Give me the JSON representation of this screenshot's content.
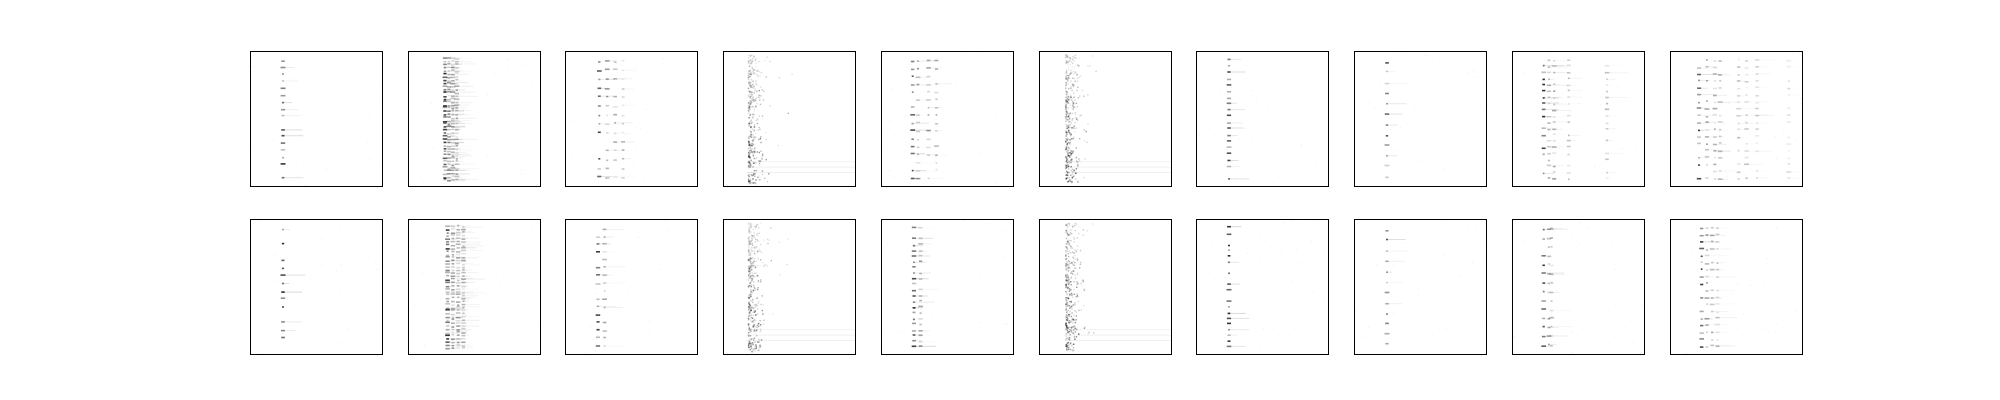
{
  "figure": {
    "background": "#ffffff",
    "frame_color": "#000000",
    "mark_color": "#000000"
  },
  "chart_data": {
    "type": "heatmap",
    "layout": {
      "rows": 2,
      "cols": 10
    },
    "title": "",
    "xlabel": "",
    "ylabel": "",
    "axes_ticks": "none",
    "grid": false,
    "colormap": "gray_r",
    "value_range": [
      0,
      1
    ],
    "panels": [
      {
        "row": 0,
        "col": 0,
        "style": "single",
        "columns": [
          0.25
        ],
        "bands": 18,
        "intensity": 0.8
      },
      {
        "row": 0,
        "col": 1,
        "style": "cluster",
        "columns": [
          0.28,
          0.31,
          0.34,
          0.37
        ],
        "bands": 40,
        "intensity": 0.9
      },
      {
        "row": 0,
        "col": 2,
        "style": "ladder",
        "columns": [
          0.26,
          0.32,
          0.38,
          0.44
        ],
        "bands": 14,
        "intensity": 0.8
      },
      {
        "row": 0,
        "col": 3,
        "style": "smear",
        "columns": [
          0.21
        ],
        "bands": 60,
        "intensity": 0.7
      },
      {
        "row": 0,
        "col": 4,
        "style": "ladder",
        "columns": [
          0.24,
          0.28,
          0.36,
          0.42
        ],
        "bands": 16,
        "intensity": 0.85
      },
      {
        "row": 0,
        "col": 5,
        "style": "smear",
        "columns": [
          0.22
        ],
        "bands": 60,
        "intensity": 0.8
      },
      {
        "row": 0,
        "col": 6,
        "style": "single",
        "columns": [
          0.25
        ],
        "bands": 20,
        "intensity": 0.75
      },
      {
        "row": 0,
        "col": 7,
        "style": "single",
        "columns": [
          0.25
        ],
        "bands": 12,
        "intensity": 0.7
      },
      {
        "row": 0,
        "col": 8,
        "style": "ladder",
        "columns": [
          0.24,
          0.28,
          0.32,
          0.43,
          0.72
        ],
        "bands": 20,
        "intensity": 0.85
      },
      {
        "row": 0,
        "col": 9,
        "style": "ladder",
        "columns": [
          0.22,
          0.28,
          0.34,
          0.38,
          0.52,
          0.58,
          0.66,
          0.9
        ],
        "bands": 18,
        "intensity": 0.8
      },
      {
        "row": 1,
        "col": 0,
        "style": "single",
        "columns": [
          0.25
        ],
        "bands": 16,
        "intensity": 0.85
      },
      {
        "row": 1,
        "col": 1,
        "style": "cluster",
        "columns": [
          0.3,
          0.34,
          0.38,
          0.42
        ],
        "bands": 40,
        "intensity": 0.85
      },
      {
        "row": 1,
        "col": 2,
        "style": "single",
        "columns": [
          0.25,
          0.3
        ],
        "bands": 16,
        "intensity": 0.8
      },
      {
        "row": 1,
        "col": 3,
        "style": "smear",
        "columns": [
          0.21
        ],
        "bands": 60,
        "intensity": 0.75
      },
      {
        "row": 1,
        "col": 4,
        "style": "single",
        "columns": [
          0.25,
          0.3
        ],
        "bands": 22,
        "intensity": 0.85
      },
      {
        "row": 1,
        "col": 5,
        "style": "smear",
        "columns": [
          0.22
        ],
        "bands": 60,
        "intensity": 0.8
      },
      {
        "row": 1,
        "col": 6,
        "style": "single",
        "columns": [
          0.25
        ],
        "bands": 22,
        "intensity": 0.85
      },
      {
        "row": 1,
        "col": 7,
        "style": "single",
        "columns": [
          0.25
        ],
        "bands": 12,
        "intensity": 0.7
      },
      {
        "row": 1,
        "col": 8,
        "style": "ladder",
        "columns": [
          0.24,
          0.28,
          0.3
        ],
        "bands": 14,
        "intensity": 0.8
      },
      {
        "row": 1,
        "col": 9,
        "style": "ladder",
        "columns": [
          0.24,
          0.28,
          0.32,
          0.36
        ],
        "bands": 18,
        "intensity": 0.8
      }
    ]
  }
}
